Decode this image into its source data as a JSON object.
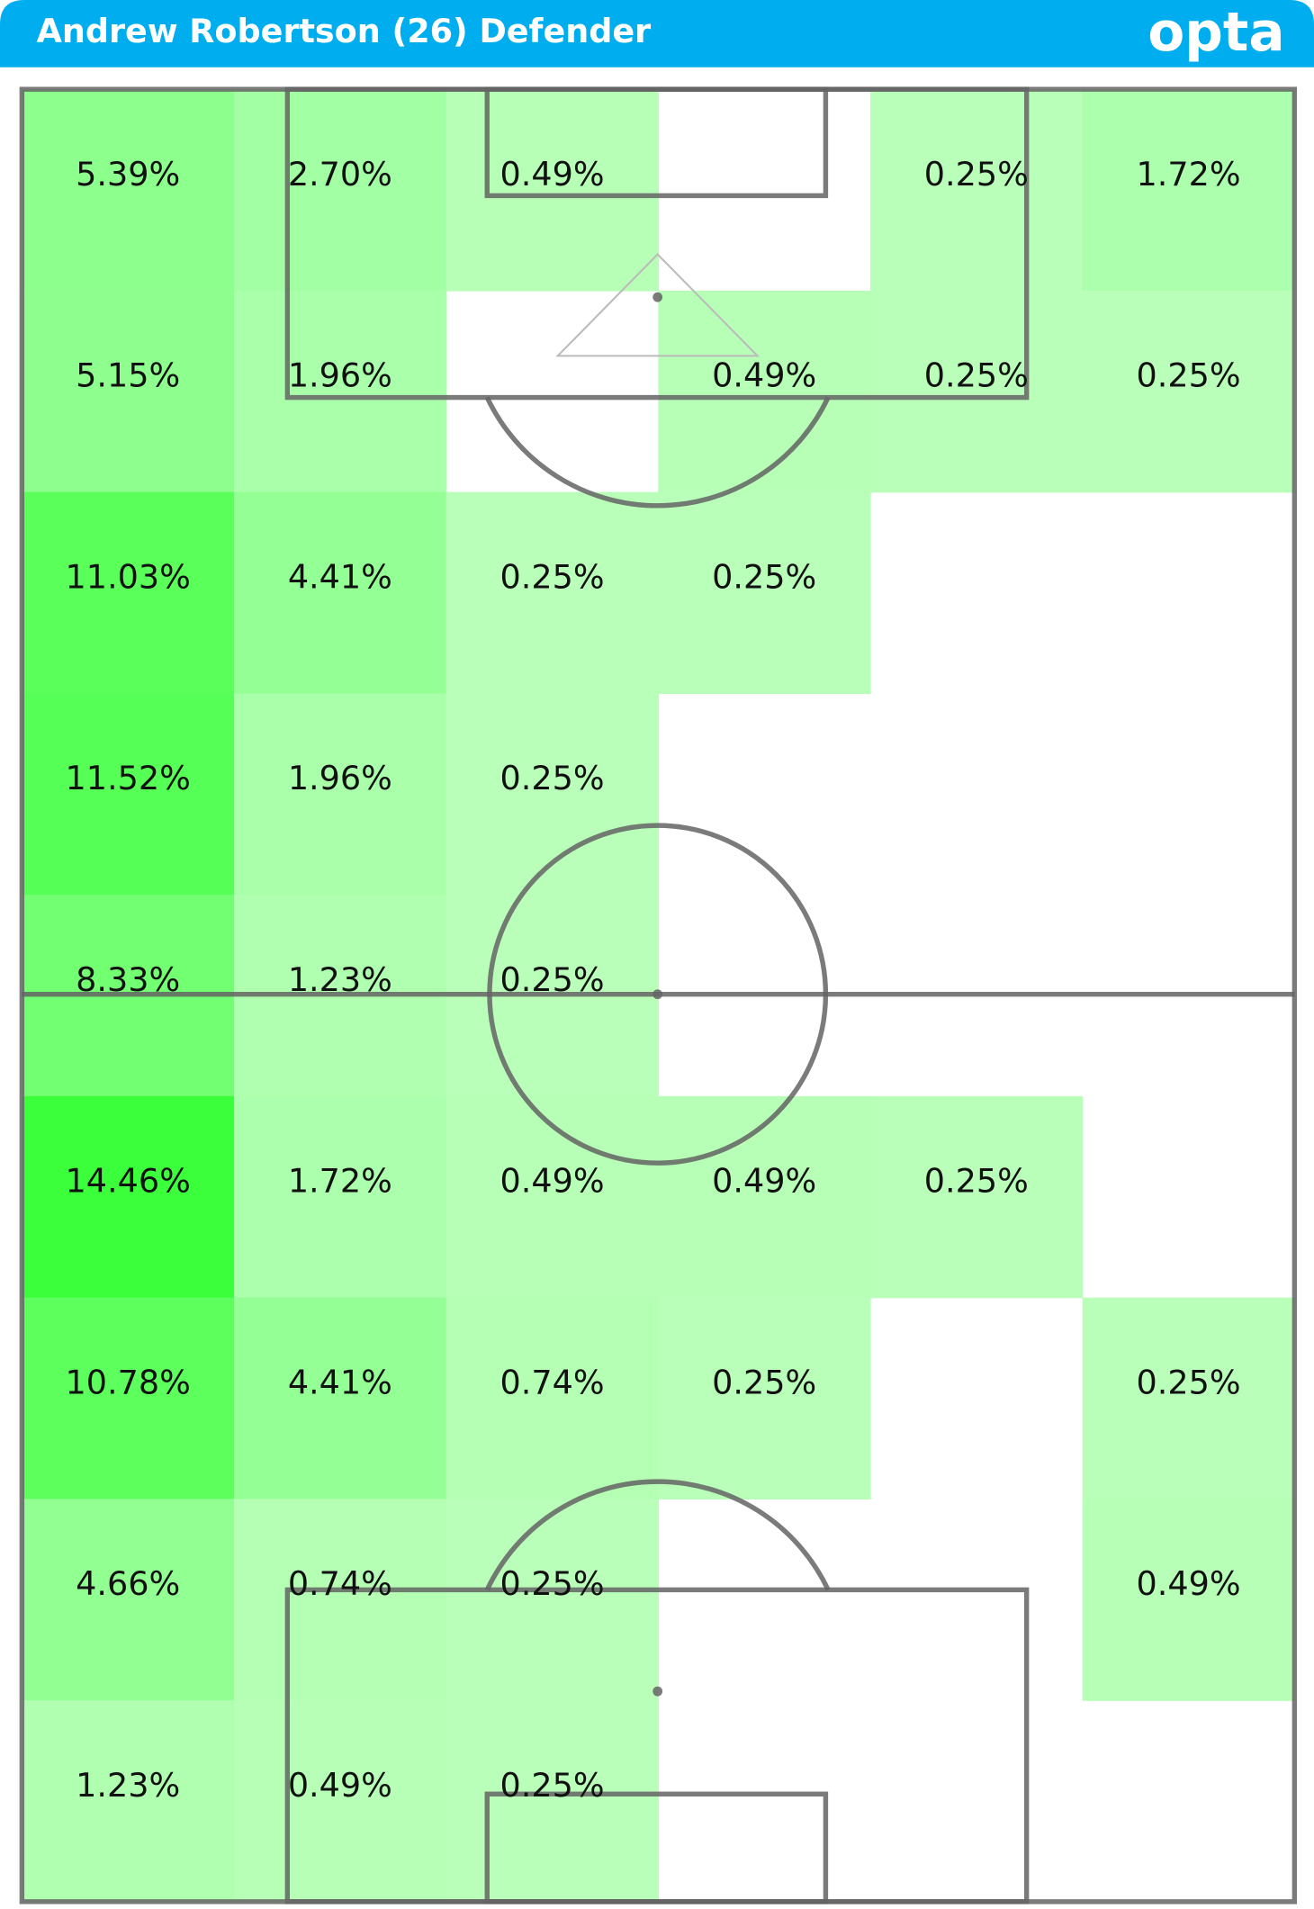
{
  "chart_data": {
    "type": "heatmap",
    "title": "Andrew Robertson (26) Defender",
    "brand": "opta",
    "values": [
      [
        5.39,
        2.7,
        0.49,
        null,
        0.25,
        1.72
      ],
      [
        5.15,
        1.96,
        null,
        0.49,
        0.25,
        0.25
      ],
      [
        11.03,
        4.41,
        0.25,
        0.25,
        null,
        null
      ],
      [
        11.52,
        1.96,
        0.25,
        null,
        null,
        null
      ],
      [
        8.33,
        1.23,
        0.25,
        null,
        null,
        null
      ],
      [
        14.46,
        1.72,
        0.49,
        0.49,
        0.25,
        null
      ],
      [
        10.78,
        4.41,
        0.74,
        0.25,
        null,
        0.25
      ],
      [
        4.66,
        0.74,
        0.25,
        null,
        null,
        0.49
      ],
      [
        1.23,
        0.49,
        0.25,
        null,
        null,
        null
      ]
    ],
    "value_labels": [
      [
        "5.39%",
        "2.70%",
        "0.49%",
        null,
        "0.25%",
        "1.72%"
      ],
      [
        "5.15%",
        "1.96%",
        null,
        "0.49%",
        "0.25%",
        "0.25%"
      ],
      [
        "11.03%",
        "4.41%",
        "0.25%",
        "0.25%",
        null,
        null
      ],
      [
        "11.52%",
        "1.96%",
        "0.25%",
        null,
        null,
        null
      ],
      [
        "8.33%",
        "1.23%",
        "0.25%",
        null,
        null,
        null
      ],
      [
        "14.46%",
        "1.72%",
        "0.49%",
        "0.49%",
        "0.25%",
        null
      ],
      [
        "10.78%",
        "4.41%",
        "0.74%",
        "0.25%",
        null,
        "0.25%"
      ],
      [
        "4.66%",
        "0.74%",
        "0.25%",
        null,
        null,
        "0.49%"
      ],
      [
        "1.23%",
        "0.49%",
        "0.25%",
        null,
        null,
        null
      ]
    ],
    "color_low": "#bbffbb",
    "color_high": "#3cff3c"
  }
}
